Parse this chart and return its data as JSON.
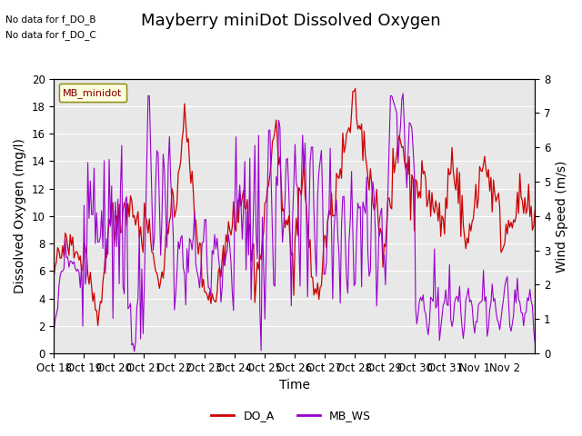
{
  "title": "Mayberry miniDot Dissolved Oxygen",
  "xlabel": "Time",
  "ylabel_left": "Dissolved Oxygen (mg/l)",
  "ylabel_right": "Wind Speed (m/s)",
  "no_data_text": [
    "No data for f_DO_B",
    "No data for f_DO_C"
  ],
  "legend_box_label": "MB_minidot",
  "legend_entries": [
    "DO_A",
    "MB_WS"
  ],
  "legend_colors": [
    "#cc0000",
    "#9900cc"
  ],
  "do_color": "#cc0000",
  "ws_color": "#9900cc",
  "ylim_left": [
    0,
    20
  ],
  "ylim_right": [
    0.0,
    8.0
  ],
  "yticks_left": [
    0,
    2,
    4,
    6,
    8,
    10,
    12,
    14,
    16,
    18,
    20
  ],
  "yticks_right": [
    0.0,
    1.0,
    2.0,
    3.0,
    4.0,
    5.0,
    6.0,
    7.0,
    8.0
  ],
  "xtick_labels": [
    "Oct 18",
    "Oct 19",
    "Oct 20",
    "Oct 21",
    "Oct 22",
    "Oct 23",
    "Oct 24",
    "Oct 25",
    "Oct 26",
    "Oct 27",
    "Oct 28",
    "Oct 29",
    "Oct 30",
    "Oct 31",
    "Nov 1",
    "Nov 2"
  ],
  "bg_color": "#e8e8e8",
  "fig_bg_color": "#ffffff",
  "title_fontsize": 13,
  "axis_label_fontsize": 10,
  "tick_fontsize": 8.5
}
